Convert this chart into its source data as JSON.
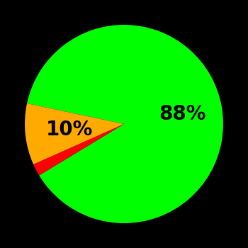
{
  "slices": [
    88,
    2,
    10
  ],
  "colors": [
    "#00ff00",
    "#ff0000",
    "#ffaa00"
  ],
  "background_color": "#000000",
  "label_fontsize": 20,
  "label_fontweight": "bold",
  "startangle": 168,
  "figsize": [
    3.5,
    3.5
  ],
  "dpi": 100
}
